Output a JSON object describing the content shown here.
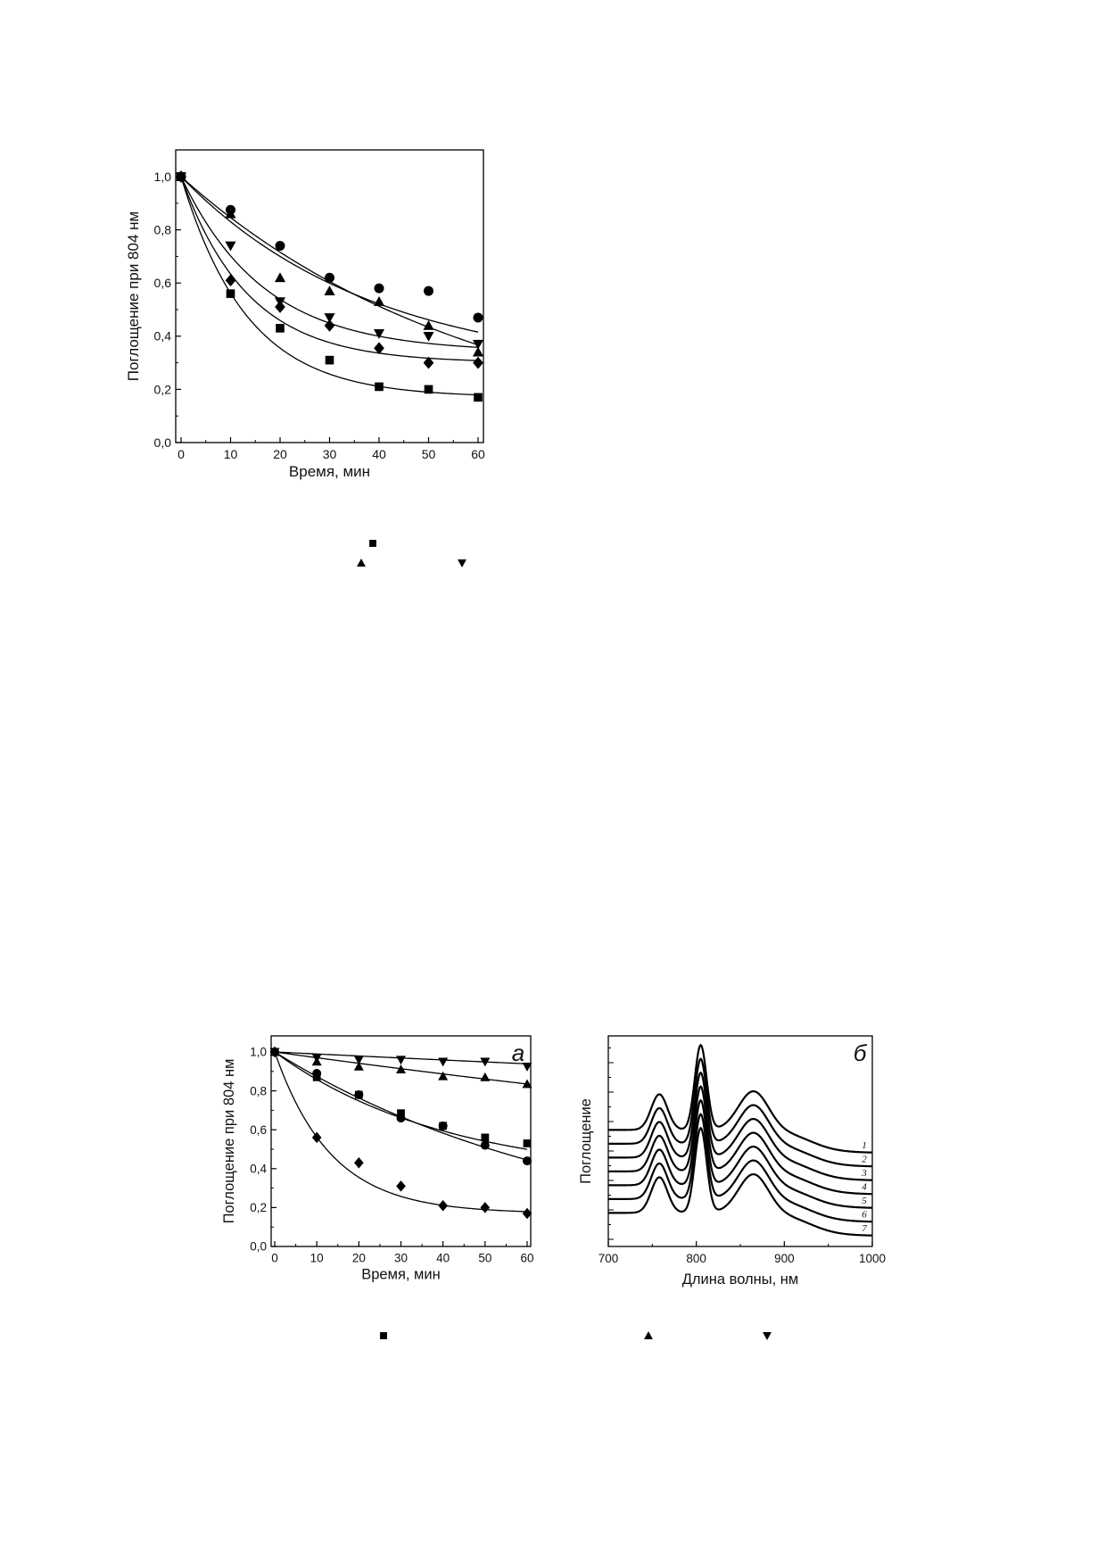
{
  "chart_data": [
    {
      "type": "scatter",
      "xlabel": "Время, мин",
      "ylabel": "Поглощение при 804 нм",
      "xlim": [
        0,
        60
      ],
      "ylim": [
        0,
        1.0
      ],
      "xticks": [
        "0",
        "10",
        "20",
        "30",
        "40",
        "50",
        "60"
      ],
      "yticks": [
        "0,0",
        "0,2",
        "0,4",
        "0,6",
        "0,8",
        "1,0"
      ],
      "fit_lines": true,
      "series": [
        {
          "marker": "circle",
          "x": [
            0,
            10,
            20,
            30,
            40,
            50,
            60
          ],
          "y": [
            1.0,
            0.875,
            0.74,
            0.62,
            0.58,
            0.57,
            0.47
          ],
          "fit": {
            "plateau": 0.26,
            "k": 0.026
          }
        },
        {
          "marker": "triangle-up",
          "x": [
            0,
            10,
            20,
            30,
            40,
            50,
            60
          ],
          "y": [
            1.0,
            0.86,
            0.62,
            0.57,
            0.53,
            0.44,
            0.34
          ],
          "fit": {
            "plateau": 0.0,
            "k": 0.0167
          }
        },
        {
          "marker": "triangle-down",
          "x": [
            0,
            10,
            20,
            30,
            40,
            50,
            60
          ],
          "y": [
            1.0,
            0.74,
            0.53,
            0.47,
            0.41,
            0.4,
            0.37
          ],
          "fit": {
            "plateau": 0.34,
            "k": 0.06
          }
        },
        {
          "marker": "diamond",
          "x": [
            0,
            10,
            20,
            30,
            40,
            50,
            60
          ],
          "y": [
            1.0,
            0.61,
            0.51,
            0.44,
            0.355,
            0.3,
            0.3
          ],
          "fit": {
            "plateau": 0.3,
            "k": 0.074
          }
        },
        {
          "marker": "square",
          "x": [
            0,
            10,
            20,
            30,
            40,
            50,
            60
          ],
          "y": [
            1.0,
            0.56,
            0.43,
            0.31,
            0.21,
            0.2,
            0.17
          ],
          "fit": {
            "plateau": 0.17,
            "k": 0.075
          }
        }
      ],
      "legend_markers": [
        "square",
        "triangle-up",
        "triangle-down"
      ]
    },
    {
      "type": "scatter",
      "panel": "а",
      "xlabel": "Время, мин",
      "ylabel": "Поглощение при 804 нм",
      "xlim": [
        0,
        60
      ],
      "ylim": [
        0,
        1.0
      ],
      "xticks": [
        "0",
        "10",
        "20",
        "30",
        "40",
        "50",
        "60"
      ],
      "yticks": [
        "0,0",
        "0,2",
        "0,4",
        "0,6",
        "0,8",
        "1,0"
      ],
      "fit_lines": true,
      "series": [
        {
          "marker": "triangle-down",
          "x": [
            0,
            10,
            20,
            30,
            40,
            50,
            60
          ],
          "y": [
            1.0,
            0.97,
            0.96,
            0.96,
            0.95,
            0.95,
            0.925
          ],
          "fit": {
            "plateau": 0.0,
            "k": 0.00105
          }
        },
        {
          "marker": "triangle-up",
          "x": [
            0,
            10,
            20,
            30,
            40,
            50,
            60
          ],
          "y": [
            1.0,
            0.95,
            0.925,
            0.91,
            0.875,
            0.87,
            0.835
          ],
          "fit": {
            "plateau": 0.0,
            "k": 0.003
          }
        },
        {
          "marker": "square",
          "x": [
            0,
            10,
            20,
            30,
            40,
            50,
            60
          ],
          "y": [
            1.0,
            0.87,
            0.78,
            0.685,
            0.62,
            0.56,
            0.53
          ],
          "fit": {
            "plateau": 0.35,
            "k": 0.0245
          }
        },
        {
          "marker": "circle",
          "x": [
            0,
            10,
            20,
            30,
            40,
            50,
            60
          ],
          "y": [
            1.0,
            0.89,
            0.78,
            0.66,
            0.62,
            0.52,
            0.44
          ],
          "fit": {
            "plateau": 0.0,
            "k": 0.0135
          }
        },
        {
          "marker": "diamond",
          "x": [
            0,
            10,
            20,
            30,
            40,
            50,
            60
          ],
          "y": [
            1.0,
            0.56,
            0.43,
            0.31,
            0.21,
            0.2,
            0.17
          ],
          "fit": {
            "plateau": 0.17,
            "k": 0.075
          }
        }
      ],
      "legend_markers": [
        "square",
        "triangle-up",
        "triangle-down"
      ]
    },
    {
      "type": "line",
      "panel": "б",
      "xlabel": "Длина волны, нм",
      "ylabel": "Поглощение",
      "xlim": [
        700,
        1000
      ],
      "xticks": [
        "700",
        "800",
        "900",
        "1000"
      ],
      "y_tick_labels": false,
      "curve_labels": [
        "1",
        "2",
        "3",
        "4",
        "5",
        "6",
        "7"
      ],
      "peaks_nm": [
        758,
        805,
        865
      ],
      "offsets": [
        1.0,
        0.84,
        0.7,
        0.56,
        0.42,
        0.28,
        0.14
      ]
    }
  ]
}
